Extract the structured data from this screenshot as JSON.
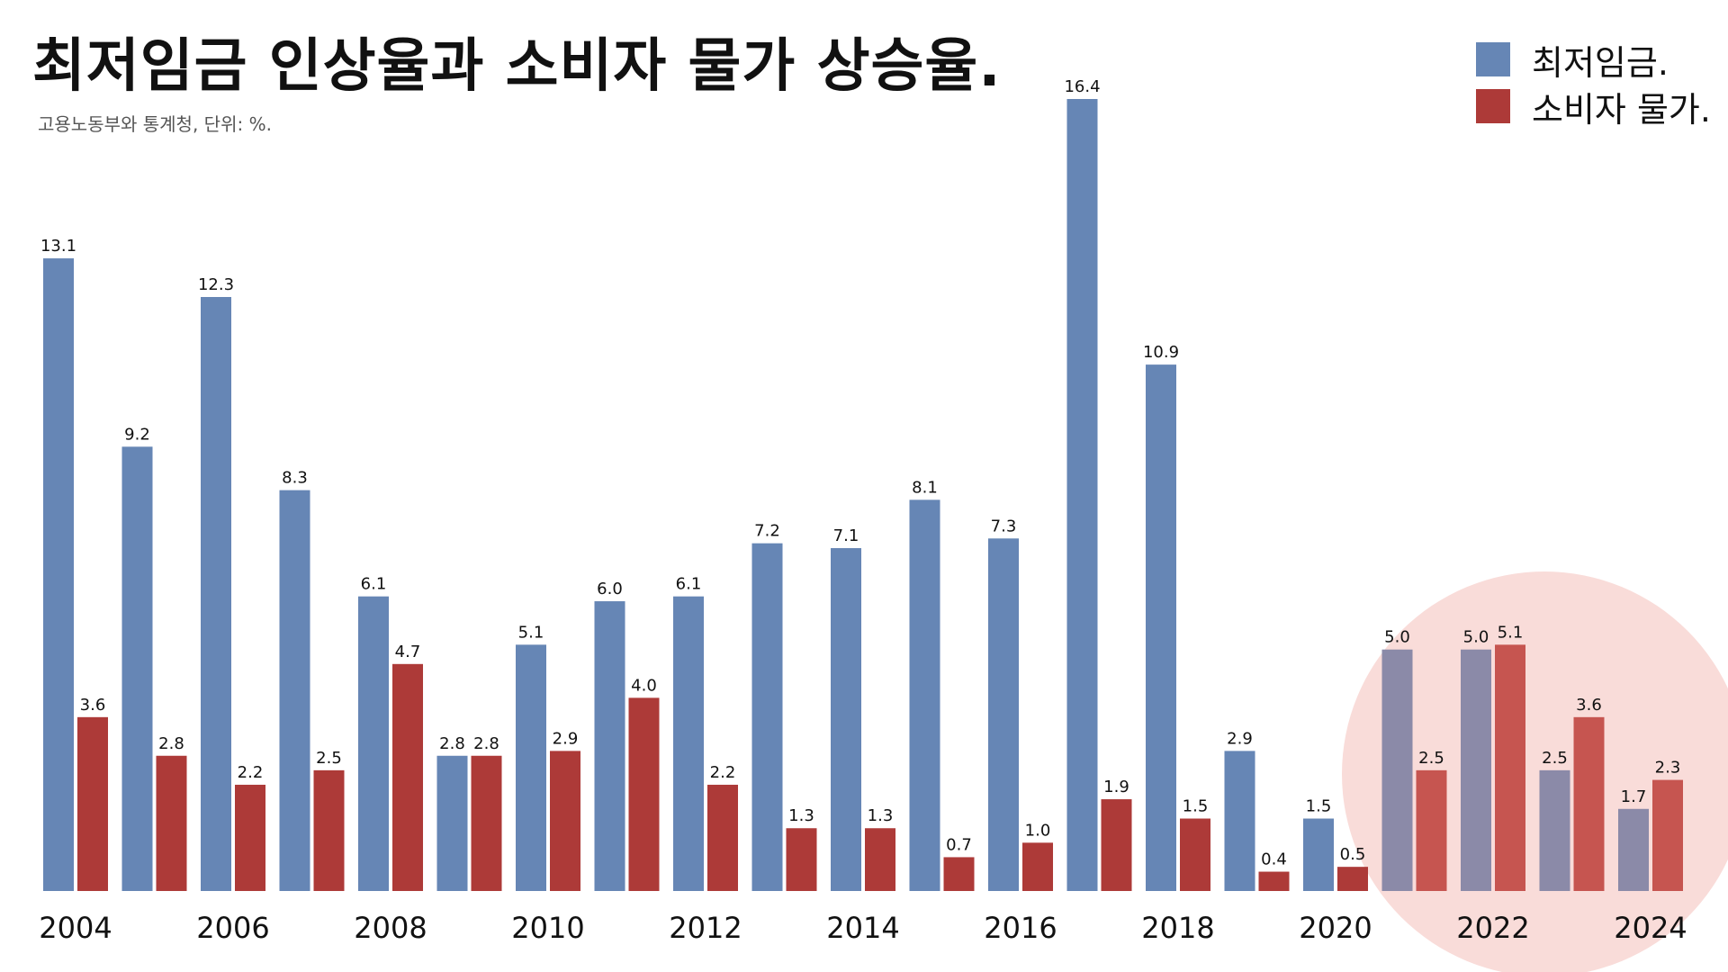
{
  "chart_data": {
    "type": "bar",
    "title": "최저임금 인상율과 소비자 물가 상승율.",
    "subtitle": "고용노동부와 통계청,  단위: %.",
    "years": [
      2004,
      2005,
      2006,
      2007,
      2008,
      2009,
      2010,
      2011,
      2012,
      2013,
      2014,
      2015,
      2016,
      2017,
      2018,
      2019,
      2020,
      2021,
      2022,
      2023,
      2024
    ],
    "x_tick_labels": [
      "2004",
      "2006",
      "2008",
      "2010",
      "2012",
      "2014",
      "2016",
      "2018",
      "2020",
      "2022",
      "2024"
    ],
    "series": [
      {
        "name": "최저임금.",
        "color": "#6686b5",
        "highlight_color": "#8b8aa8",
        "values": [
          13.1,
          9.2,
          12.3,
          8.3,
          6.1,
          2.8,
          5.1,
          6.0,
          6.1,
          7.2,
          7.1,
          8.1,
          7.3,
          16.4,
          10.9,
          2.9,
          1.5,
          5.0,
          5.0,
          2.5,
          1.7
        ],
        "labels": [
          "13.1",
          "9.2",
          "12.3",
          "8.3",
          "6.1",
          "2.8",
          "5.1",
          "6.0",
          "6.1",
          "7.2",
          "7.1",
          "8.1",
          "7.3",
          "16.4",
          "10.9",
          "2.9",
          "1.5",
          "5.0",
          "5.0",
          "2.5",
          "1.7"
        ]
      },
      {
        "name": "소비자 물가.",
        "color": "#ad3a38",
        "highlight_color": "#c65550",
        "values": [
          3.6,
          2.8,
          2.2,
          2.5,
          4.7,
          2.8,
          2.9,
          4.0,
          2.2,
          1.3,
          1.3,
          0.7,
          1.0,
          1.9,
          1.5,
          0.4,
          0.5,
          2.5,
          5.1,
          3.6,
          2.3
        ],
        "labels": [
          "3.6",
          "2.8",
          "2.2",
          "2.5",
          "4.7",
          "2.8",
          "2.9",
          "4.0",
          "2.2",
          "1.3",
          "1.3",
          "0.7",
          "1.0",
          "1.9",
          "1.5",
          "0.4",
          "0.5",
          "2.5",
          "5.1",
          "3.6",
          "2.3"
        ]
      }
    ],
    "highlight": {
      "from_year": 2021,
      "to_year": 2024,
      "color": "#f9dcd9"
    },
    "ylim": [
      0,
      16.4
    ],
    "grid": false,
    "legend_position": "top-right"
  }
}
